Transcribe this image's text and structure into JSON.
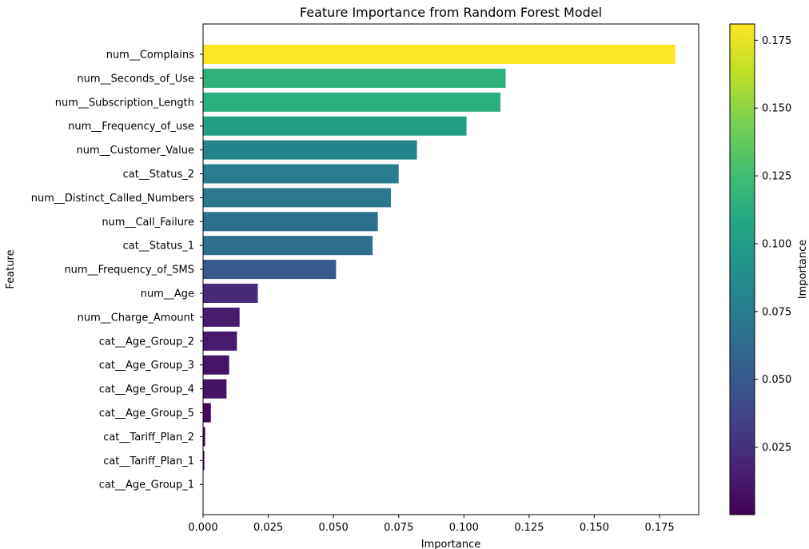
{
  "chart_data": {
    "type": "bar",
    "orientation": "horizontal",
    "title": "Feature Importance from Random Forest Model",
    "xlabel": "Importance",
    "ylabel": "Feature",
    "xlim": [
      0,
      0.19
    ],
    "x_ticks": [
      "0.000",
      "0.025",
      "0.050",
      "0.075",
      "0.100",
      "0.125",
      "0.150",
      "0.175"
    ],
    "x_tick_values": [
      0,
      0.025,
      0.05,
      0.075,
      0.1,
      0.125,
      0.15,
      0.175
    ],
    "grid": false,
    "colormap": "viridis",
    "categories": [
      "num__Complains",
      "num__Seconds_of_Use",
      "num__Subscription_Length",
      "num__Frequency_of_use",
      "num__Customer_Value",
      "cat__Status_2",
      "num__Distinct_Called_Numbers",
      "num__Call_Failure",
      "cat__Status_1",
      "num__Frequency_of_SMS",
      "num__Age",
      "num__Charge_Amount",
      "cat__Age_Group_2",
      "cat__Age_Group_3",
      "cat__Age_Group_4",
      "cat__Age_Group_5",
      "cat__Tariff_Plan_2",
      "cat__Tariff_Plan_1",
      "cat__Age_Group_1"
    ],
    "values": [
      0.181,
      0.116,
      0.114,
      0.101,
      0.082,
      0.075,
      0.072,
      0.067,
      0.065,
      0.051,
      0.021,
      0.014,
      0.013,
      0.01,
      0.009,
      0.003,
      0.0008,
      0.0005,
      0.0001
    ],
    "colorbar": {
      "label": "Importance",
      "range": [
        0.0001,
        0.181
      ],
      "ticks": [
        "0.025",
        "0.050",
        "0.075",
        "0.100",
        "0.125",
        "0.150",
        "0.175"
      ],
      "tick_values": [
        0.025,
        0.05,
        0.075,
        0.1,
        0.125,
        0.15,
        0.175
      ]
    }
  }
}
